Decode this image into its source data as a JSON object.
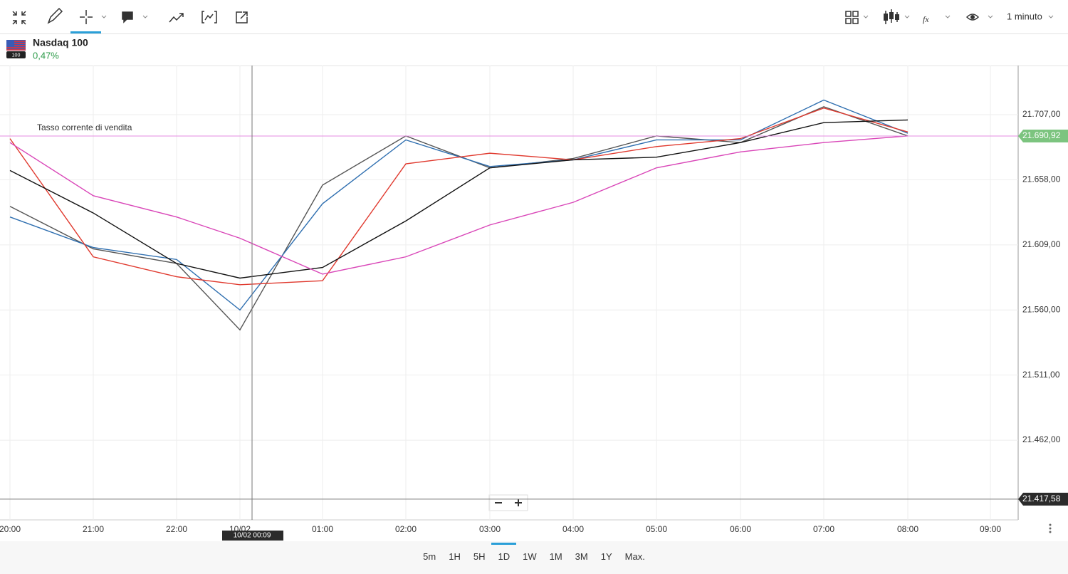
{
  "toolbar": {
    "interval": "1 minuto"
  },
  "instrument": {
    "name": "Nasdaq 100",
    "change": "0,47%",
    "badge": "100"
  },
  "chart_data": {
    "type": "line",
    "categories": [
      "20:00",
      "21:00",
      "22:00",
      "10/02",
      "01:00",
      "02:00",
      "03:00",
      "04:00",
      "05:00",
      "06:00",
      "07:00",
      "08:00",
      "09:00"
    ],
    "series": [
      {
        "color": "#555555",
        "values": [
          21638,
          21606,
          21595,
          21545,
          21654,
          21691,
          21667,
          21674,
          21691,
          21686,
          21713,
          21691,
          null
        ]
      },
      {
        "color": "#2f6fb0",
        "values": [
          21630,
          21607,
          21598,
          21560,
          21640,
          21688,
          21668,
          21673,
          21688,
          21688,
          21718,
          21693,
          null
        ]
      },
      {
        "color": "#e03a2f",
        "values": [
          21689,
          21600,
          21585,
          21579,
          21582,
          21670,
          21678,
          21673,
          21683,
          21689,
          21712,
          21694,
          null
        ]
      },
      {
        "color": "#111111",
        "values": [
          21665,
          21633,
          21595,
          21584,
          21592,
          21627,
          21667,
          21673,
          21675,
          21686,
          21701,
          21703,
          null
        ]
      },
      {
        "color": "#d946b8",
        "values": [
          21686,
          21646,
          21630,
          21614,
          21587,
          21600,
          21624,
          21641,
          21667,
          21679,
          21686,
          21691,
          null
        ]
      }
    ],
    "ylim": [
      21402,
      21744
    ],
    "yticks": [
      {
        "value": 21462,
        "label": "21.462,00"
      },
      {
        "value": 21511,
        "label": "21.511,00"
      },
      {
        "value": 21560,
        "label": "21.560,00"
      },
      {
        "value": 21609,
        "label": "21.609,00"
      },
      {
        "value": 21658,
        "label": "21.658,00"
      },
      {
        "value": 21707,
        "label": "21.707,00"
      }
    ],
    "grid": true,
    "current_price": {
      "value": 21690.92,
      "label": "21.690,92",
      "color": "#7cc47f"
    },
    "price_line_label": "Tasso corrente di vendita",
    "crosshair_price": {
      "value": 21417.58,
      "label": "21.417,58"
    },
    "crosshair_time": "10/02 00:09"
  },
  "ranges": [
    "5m",
    "1H",
    "5H",
    "1D",
    "1W",
    "1M",
    "3M",
    "1Y",
    "Max."
  ]
}
